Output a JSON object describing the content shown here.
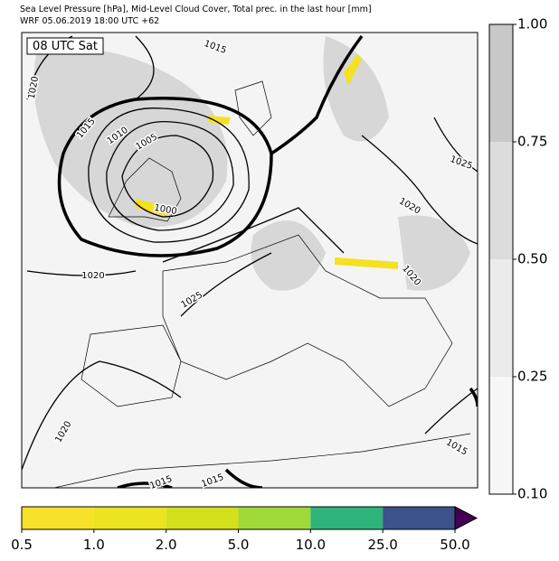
{
  "header": {
    "line1": "Sea Level Pressure [hPa], Mid-Level Cloud Cover, Total prec. in the last hour [mm]",
    "line2": "WRF 05.06.2019 18:00 UTC +62"
  },
  "map": {
    "time_label": "08 UTC Sat",
    "isobar_labels": [
      "1015",
      "1010",
      "1005",
      "1000",
      "1020",
      "1015",
      "1025",
      "1020",
      "1020",
      "1025",
      "1020",
      "1020",
      "1015",
      "1015",
      "1015"
    ]
  },
  "cloud_colorbar": {
    "ticks": [
      "1.00",
      "0.75",
      "0.50",
      "0.25",
      "0.10"
    ],
    "colors": [
      "#c8c8c8",
      "#dcdcdc",
      "#ebebeb",
      "#f7f7f7"
    ]
  },
  "precip_colorbar": {
    "ticks": [
      "0.5",
      "1.0",
      "2.0",
      "5.0",
      "10.0",
      "25.0",
      "50.0"
    ],
    "colors": [
      "#f7e12a",
      "#ebe41f",
      "#d4e01c",
      "#a0da39",
      "#2eb37c",
      "#3b528b",
      "#440154"
    ]
  }
}
